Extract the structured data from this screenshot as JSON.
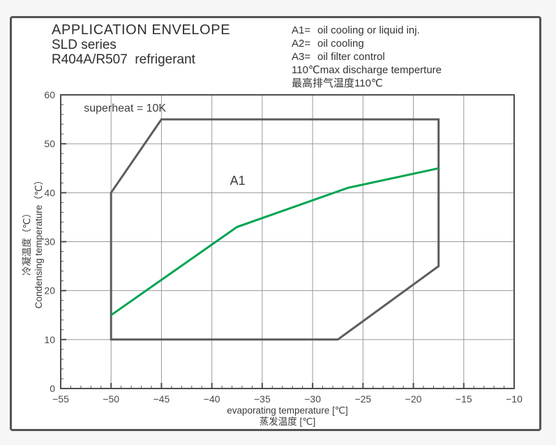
{
  "header": {
    "title_line1": "APPLICATION ENVELOPE",
    "title_line2": "SLD series",
    "title_line3": "R404A/R507  refrigerant"
  },
  "legend": {
    "entries": [
      {
        "key": "A1=",
        "desc": "oil cooling or liquid inj."
      },
      {
        "key": "A2=",
        "desc": "oil cooling"
      },
      {
        "key": "A3=",
        "desc": "oil filter control"
      }
    ],
    "note_en": "110℃max discharge temperture",
    "note_cn": "最高排气温度110℃"
  },
  "chart_data": {
    "type": "line",
    "title": "APPLICATION ENVELOPE",
    "xlabel": "evaporating temperature [℃]",
    "xlabel_cn": "蒸发温度 [℃]",
    "ylabel_cn": "冷凝温度（℃）",
    "ylabel": "Condensing temperature（℃）",
    "xlim": [
      -55,
      -10
    ],
    "ylim": [
      0,
      60
    ],
    "x_ticks": [
      -55,
      -50,
      -45,
      -40,
      -35,
      -30,
      -25,
      -20,
      -15,
      -10
    ],
    "y_ticks": [
      0,
      10,
      20,
      30,
      40,
      50,
      60
    ],
    "x_minor_step": 1,
    "y_minor_step": 2,
    "grid": true,
    "legend_position": "top-right-outside",
    "colors": {
      "grid": "#999999",
      "axis": "#4d4d4d",
      "tick_label": "#4a4a4a",
      "envelope": "#5c5c5c",
      "a1_line": "#00a551",
      "annotation": "#3d3d3d"
    },
    "series": [
      {
        "name": "operating-envelope",
        "shape": "polygon",
        "color": "#5c5c5c",
        "stroke_width": 3,
        "points": [
          [
            -50,
            10
          ],
          [
            -50,
            40
          ],
          [
            -45,
            55
          ],
          [
            -17.5,
            55
          ],
          [
            -17.5,
            25
          ],
          [
            -27.5,
            10
          ]
        ]
      },
      {
        "name": "a1-boundary-line",
        "shape": "polyline",
        "color": "#00a551",
        "stroke_width": 3,
        "points": [
          [
            -50,
            15
          ],
          [
            -37.5,
            33
          ],
          [
            -26.5,
            41
          ],
          [
            -17.5,
            45
          ]
        ]
      }
    ],
    "annotations": [
      {
        "id": "superheat-note",
        "text": "superheat = 10K",
        "x": -52.7,
        "y": 56.6,
        "font_size": 16,
        "anchor": "start"
      },
      {
        "id": "region-a1",
        "text": "A1",
        "x": -38.2,
        "y": 41.6,
        "font_size": 18,
        "anchor": "start"
      }
    ]
  }
}
